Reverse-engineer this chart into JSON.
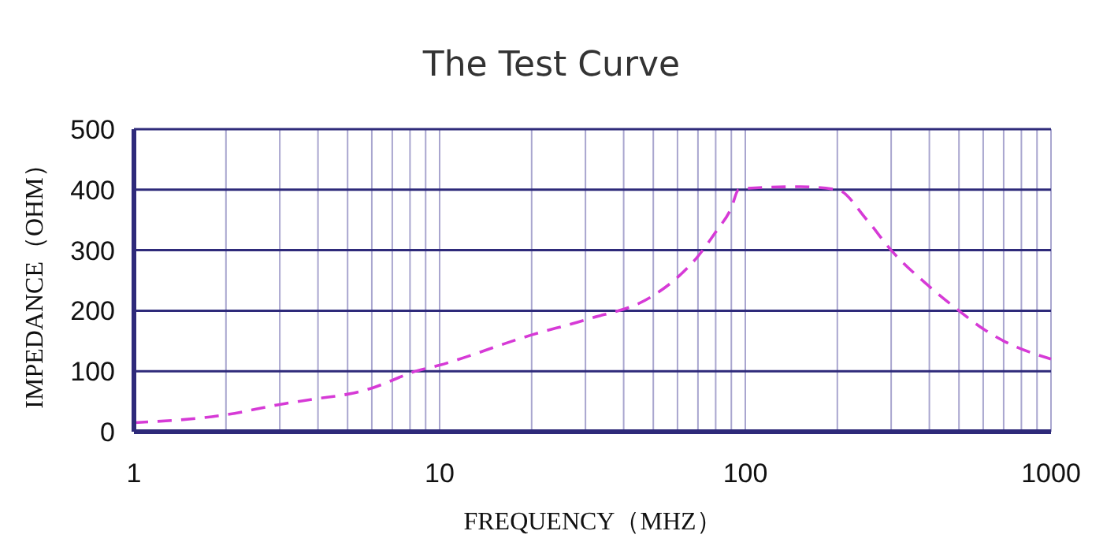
{
  "chart_data": {
    "type": "line",
    "title": "The Test Curve",
    "xlabel": "FREQUENCY（MHZ）",
    "ylabel": "IMPEDANCE（OHM）",
    "log": "x",
    "grid": true,
    "line_style": "dashed",
    "marker": "none",
    "xlim": [
      1,
      1000
    ],
    "ylim": [
      0,
      500
    ],
    "yticks": [
      0,
      100,
      200,
      300,
      400,
      500
    ],
    "xticks": [
      1,
      {
        "value": 2,
        "label": null
      },
      {
        "value": 3,
        "label": null
      },
      {
        "value": 4,
        "label": null
      },
      {
        "value": 5,
        "label": null
      },
      {
        "value": 6,
        "label": null
      },
      {
        "value": 7,
        "label": null
      },
      {
        "value": 8,
        "label": null
      },
      {
        "value": 9,
        "label": null
      },
      10,
      {
        "value": 20,
        "label": null
      },
      {
        "value": 30,
        "label": null
      },
      {
        "value": 40,
        "label": null
      },
      {
        "value": 50,
        "label": null
      },
      {
        "value": 60,
        "label": null
      },
      {
        "value": 70,
        "label": null
      },
      {
        "value": 80,
        "label": null
      },
      {
        "value": 90,
        "label": null
      },
      100,
      {
        "value": 200,
        "label": null
      },
      {
        "value": 300,
        "label": null
      },
      {
        "value": 400,
        "label": null
      },
      {
        "value": 500,
        "label": null
      },
      {
        "value": 600,
        "label": null
      },
      {
        "value": 700,
        "label": null
      },
      {
        "value": 800,
        "label": null
      },
      {
        "value": 900,
        "label": null
      },
      1000
    ],
    "x": [
      1,
      2,
      3,
      4,
      5,
      6,
      7,
      8,
      10,
      20,
      30,
      50,
      60,
      70,
      80,
      90,
      95,
      100,
      150,
      200,
      250,
      300,
      400,
      500,
      600,
      700,
      1000
    ],
    "series": [
      {
        "color": "#d63ad6",
        "values": [
          15,
          28,
          45,
          55,
          62,
          72,
          85,
          97,
          110,
          160,
          185,
          225,
          255,
          290,
          330,
          370,
          400,
          402,
          405,
          400,
          350,
          300,
          240,
          200,
          170,
          150,
          120
        ]
      }
    ]
  }
}
